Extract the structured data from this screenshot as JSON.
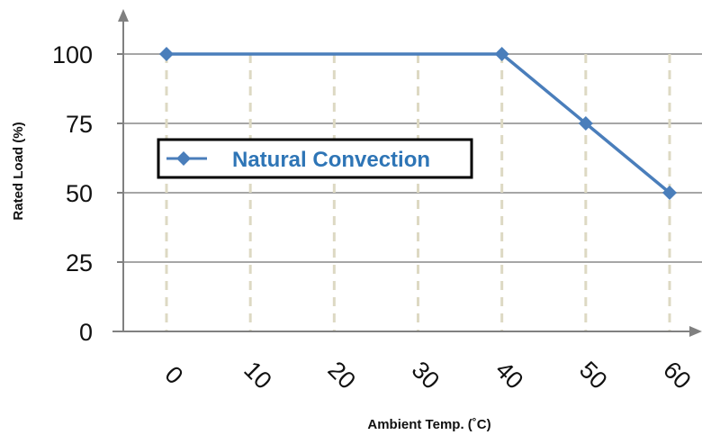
{
  "chart_data": {
    "type": "line",
    "title": "",
    "xlabel": "Ambient Temp. (˚C)",
    "ylabel": "Rated Load (%)",
    "x_ticks": [
      "0",
      "10",
      "20",
      "30",
      "40",
      "50",
      "60"
    ],
    "y_ticks": [
      "0",
      "25",
      "50",
      "75",
      "100"
    ],
    "xlim": [
      0,
      60
    ],
    "ylim": [
      0,
      100
    ],
    "grid": {
      "horizontal": true,
      "vertical": "dashed"
    },
    "legend_position": "left, middle",
    "series": [
      {
        "name": "Natural Convection",
        "color": "#4A7EBB",
        "marker": "diamond",
        "x": [
          0,
          40,
          50,
          60
        ],
        "y": [
          100,
          100,
          75,
          50
        ]
      }
    ]
  },
  "colors": {
    "series_line": "#4A7EBB",
    "legend_text": "#2E75B6",
    "h_grid": "#A6A6A6",
    "v_grid": "#DDD9C3",
    "axis_arrow": "#808080"
  }
}
